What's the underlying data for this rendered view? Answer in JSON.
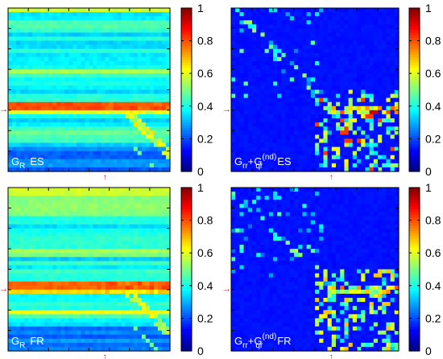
{
  "chart_data": [
    {
      "type": "heatmap",
      "label": {
        "main": "G",
        "sub": "R",
        "tag": "ES"
      },
      "pattern": "row",
      "colorbar": {
        "min": 0,
        "max": 1,
        "ticks": [
          "0",
          "0.2",
          "0.4",
          "0.6",
          "0.8",
          "1"
        ]
      },
      "markers": {
        "left_arrow": "→",
        "bottom_arrow": "↑"
      }
    },
    {
      "type": "heatmap",
      "label": {
        "main": "G",
        "sub1": "rr",
        "plus": "+G",
        "sup": "(nd)",
        "sub2": "qr",
        "tag": "ES"
      },
      "pattern": "sparse",
      "colorbar": {
        "min": 0,
        "max": 1,
        "ticks": [
          "0",
          "0.2",
          "0.4",
          "0.6",
          "0.8",
          "1"
        ]
      },
      "markers": {
        "left_arrow": "→",
        "bottom_arrow": "↑"
      }
    },
    {
      "type": "heatmap",
      "label": {
        "main": "G",
        "sub": "R",
        "tag": "FR"
      },
      "pattern": "row",
      "colorbar": {
        "min": 0,
        "max": 1,
        "ticks": [
          "0",
          "0.2",
          "0.4",
          "0.6",
          "0.8",
          "1"
        ]
      },
      "markers": {
        "left_arrow": "→",
        "bottom_arrow": "↑"
      }
    },
    {
      "type": "heatmap",
      "label": {
        "main": "G",
        "sub1": "rr",
        "plus": "+G",
        "sup": "(nd)",
        "sub2": "qr",
        "tag": "FR"
      },
      "pattern": "sparse",
      "colorbar": {
        "min": 0,
        "max": 1,
        "ticks": [
          "0",
          "0.2",
          "0.4",
          "0.6",
          "0.8",
          "1"
        ]
      },
      "markers": {
        "left_arrow": "→",
        "bottom_arrow": "↑"
      }
    }
  ]
}
